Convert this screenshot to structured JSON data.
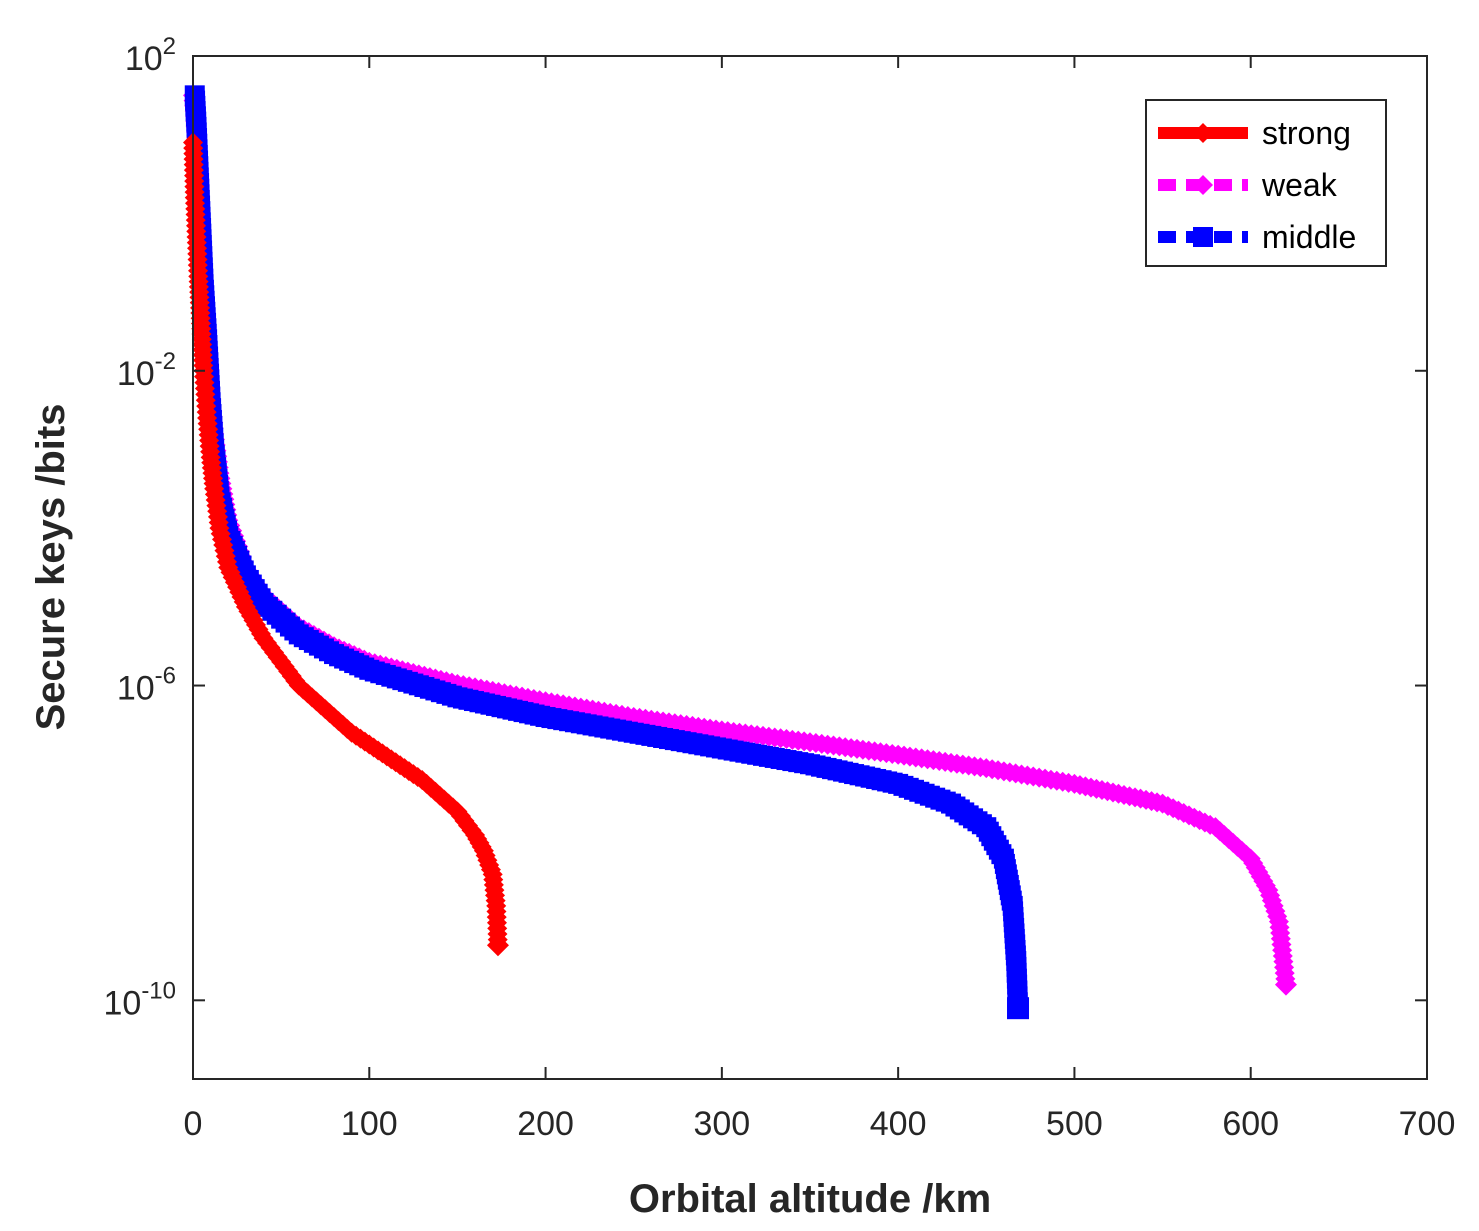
{
  "chart_data": {
    "type": "line",
    "title": "",
    "xlabel": "Orbital altitude /km",
    "ylabel": "Secure keys /bits",
    "xlim": [
      0,
      700
    ],
    "ylim_log10": [
      -11,
      2
    ],
    "yscale": "log",
    "x_ticks": [
      0,
      100,
      200,
      300,
      400,
      500,
      600,
      700
    ],
    "x_tick_labels": [
      "0",
      "100",
      "200",
      "300",
      "400",
      "500",
      "600",
      "700"
    ],
    "y_ticks_exp": [
      2,
      -2,
      -6,
      -10
    ],
    "y_tick_base": "10",
    "y_tick_exponents": [
      "2",
      "-2",
      "-6",
      "-10"
    ],
    "legend_position": "top-right",
    "series": [
      {
        "name": "strong",
        "color": "#ff0000",
        "line_style": "solid",
        "marker": "diamond",
        "points": [
          [
            0,
            0.9
          ],
          [
            1,
            0.2
          ],
          [
            2,
            -0.3
          ],
          [
            3,
            -0.8
          ],
          [
            4,
            -1.2
          ],
          [
            5,
            -1.6
          ],
          [
            6,
            -2.0
          ],
          [
            8,
            -2.6
          ],
          [
            10,
            -3.1
          ],
          [
            12,
            -3.5
          ],
          [
            15,
            -4.0
          ],
          [
            20,
            -4.5
          ],
          [
            30,
            -5.0
          ],
          [
            40,
            -5.4
          ],
          [
            50,
            -5.7
          ],
          [
            60,
            -6.0
          ],
          [
            70,
            -6.2
          ],
          [
            80,
            -6.4
          ],
          [
            90,
            -6.6
          ],
          [
            100,
            -6.75
          ],
          [
            110,
            -6.9
          ],
          [
            120,
            -7.05
          ],
          [
            130,
            -7.2
          ],
          [
            140,
            -7.4
          ],
          [
            150,
            -7.6
          ],
          [
            160,
            -7.9
          ],
          [
            165,
            -8.1
          ],
          [
            170,
            -8.4
          ],
          [
            172,
            -8.8
          ],
          [
            173,
            -9.3
          ]
        ]
      },
      {
        "name": "weak",
        "color": "#ff00ff",
        "line_style": "dashed",
        "marker": "diamond",
        "points": [
          [
            0,
            1.5
          ],
          [
            1,
            1.3
          ],
          [
            2,
            0.9
          ],
          [
            3,
            0.4
          ],
          [
            4,
            0.0
          ],
          [
            5,
            -0.4
          ],
          [
            6,
            -0.8
          ],
          [
            8,
            -1.6
          ],
          [
            10,
            -2.3
          ],
          [
            12,
            -2.8
          ],
          [
            15,
            -3.3
          ],
          [
            20,
            -3.9
          ],
          [
            30,
            -4.5
          ],
          [
            40,
            -4.85
          ],
          [
            60,
            -5.25
          ],
          [
            80,
            -5.5
          ],
          [
            100,
            -5.7
          ],
          [
            150,
            -5.98
          ],
          [
            200,
            -6.2
          ],
          [
            250,
            -6.4
          ],
          [
            300,
            -6.57
          ],
          [
            350,
            -6.72
          ],
          [
            400,
            -6.88
          ],
          [
            450,
            -7.05
          ],
          [
            500,
            -7.25
          ],
          [
            550,
            -7.5
          ],
          [
            580,
            -7.8
          ],
          [
            600,
            -8.2
          ],
          [
            610,
            -8.6
          ],
          [
            616,
            -9.0
          ],
          [
            620,
            -9.8
          ]
        ]
      },
      {
        "name": "middle",
        "color": "#0000ff",
        "line_style": "dashed",
        "marker": "square",
        "points": [
          [
            1,
            1.5
          ],
          [
            2,
            1.1
          ],
          [
            3,
            0.6
          ],
          [
            4,
            0.1
          ],
          [
            5,
            -0.4
          ],
          [
            6,
            -0.9
          ],
          [
            8,
            -1.6
          ],
          [
            10,
            -2.4
          ],
          [
            12,
            -3.0
          ],
          [
            15,
            -3.6
          ],
          [
            20,
            -4.1
          ],
          [
            30,
            -4.6
          ],
          [
            40,
            -4.95
          ],
          [
            60,
            -5.35
          ],
          [
            80,
            -5.6
          ],
          [
            100,
            -5.8
          ],
          [
            150,
            -6.15
          ],
          [
            200,
            -6.4
          ],
          [
            250,
            -6.6
          ],
          [
            300,
            -6.8
          ],
          [
            350,
            -7.0
          ],
          [
            400,
            -7.25
          ],
          [
            430,
            -7.5
          ],
          [
            450,
            -7.8
          ],
          [
            460,
            -8.2
          ],
          [
            465,
            -8.8
          ],
          [
            467,
            -9.5
          ],
          [
            468,
            -10.1
          ]
        ]
      }
    ]
  }
}
